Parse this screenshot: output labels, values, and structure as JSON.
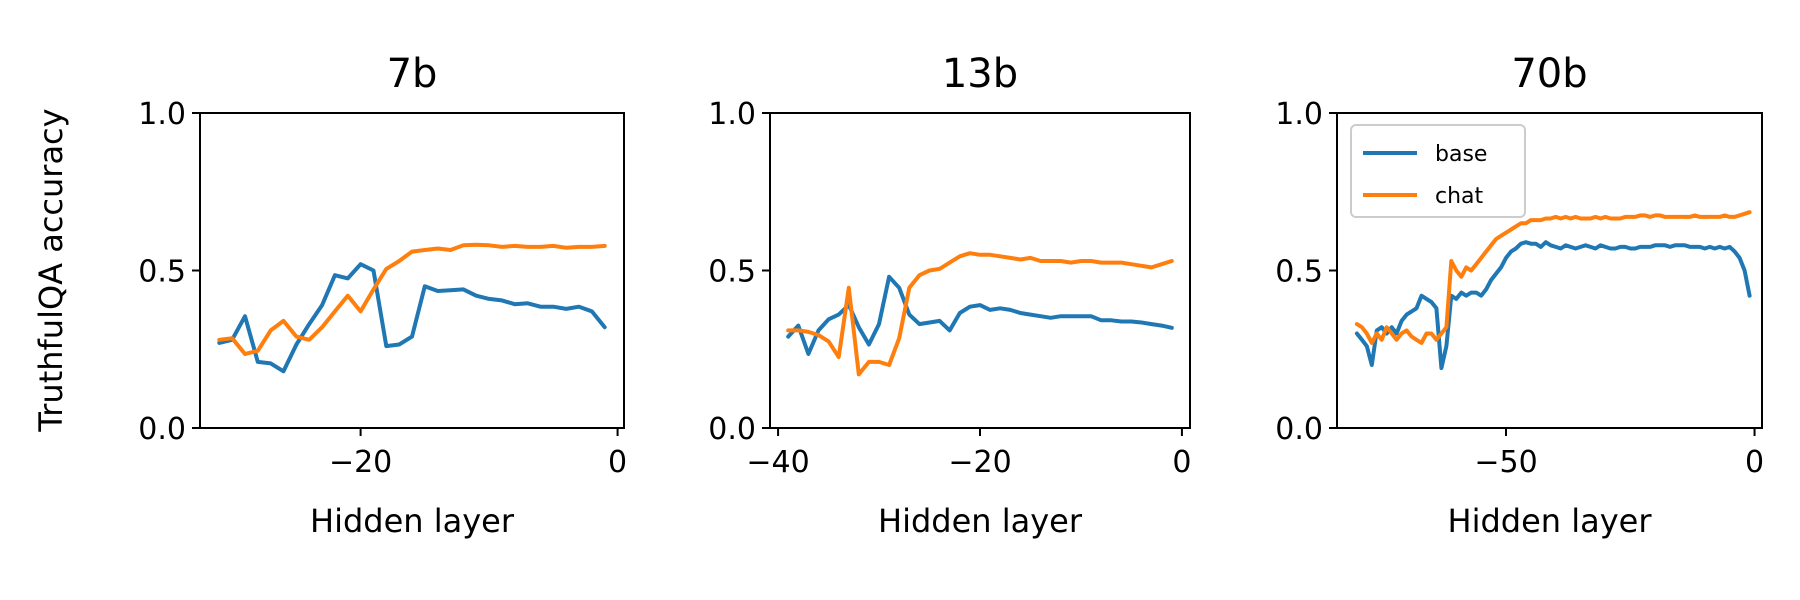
{
  "figure": {
    "ylabel": "TruthfulQA accuracy"
  },
  "colors": {
    "base": "#1f77b4",
    "chat": "#ff7f0e"
  },
  "chart_data": [
    {
      "type": "line",
      "title": "7b",
      "xlabel": "Hidden layer",
      "ylabel": "TruthfulQA accuracy",
      "xlim": [
        -32.5,
        0.5
      ],
      "ylim": [
        0,
        1
      ],
      "xticks": [
        -20,
        0
      ],
      "xtick_labels": [
        "−20",
        "0"
      ],
      "yticks": [
        0,
        0.5,
        1
      ],
      "ytick_labels": [
        "0.0",
        "0.5",
        "1.0"
      ],
      "legend": null,
      "x": [
        -31,
        -30,
        -29,
        -28,
        -27,
        -26,
        -25,
        -24,
        -23,
        -22,
        -21,
        -20,
        -19,
        -18,
        -17,
        -16,
        -15,
        -14,
        -13,
        -12,
        -11,
        -10,
        -9,
        -8,
        -7,
        -6,
        -5,
        -4,
        -3,
        -2,
        -1
      ],
      "series": [
        {
          "name": "base",
          "values": [
            0.27,
            0.28,
            0.355,
            0.21,
            0.205,
            0.18,
            0.265,
            0.33,
            0.39,
            0.485,
            0.475,
            0.52,
            0.5,
            0.26,
            0.265,
            0.29,
            0.45,
            0.435,
            0.437,
            0.44,
            0.42,
            0.41,
            0.405,
            0.393,
            0.396,
            0.385,
            0.385,
            0.378,
            0.385,
            0.37,
            0.32
          ]
        },
        {
          "name": "chat",
          "values": [
            0.28,
            0.285,
            0.235,
            0.245,
            0.31,
            0.34,
            0.29,
            0.28,
            0.32,
            0.37,
            0.42,
            0.37,
            0.44,
            0.505,
            0.53,
            0.56,
            0.565,
            0.57,
            0.565,
            0.58,
            0.582,
            0.58,
            0.575,
            0.578,
            0.575,
            0.575,
            0.578,
            0.572,
            0.575,
            0.575,
            0.578
          ]
        }
      ]
    },
    {
      "type": "line",
      "title": "13b",
      "xlabel": "Hidden layer",
      "ylabel": "",
      "xlim": [
        -40.8,
        0.8
      ],
      "ylim": [
        0,
        1
      ],
      "xticks": [
        -40,
        -20,
        0
      ],
      "xtick_labels": [
        "−40",
        "−20",
        "0"
      ],
      "yticks": [
        0,
        0.5,
        1
      ],
      "ytick_labels": [
        "0.0",
        "0.5",
        "1.0"
      ],
      "legend": null,
      "x": [
        -39,
        -38,
        -37,
        -36,
        -35,
        -34,
        -33,
        -32,
        -31,
        -30,
        -29,
        -28,
        -27,
        -26,
        -25,
        -24,
        -23,
        -22,
        -21,
        -20,
        -19,
        -18,
        -17,
        -16,
        -15,
        -14,
        -13,
        -12,
        -11,
        -10,
        -9,
        -8,
        -7,
        -6,
        -5,
        -4,
        -3,
        -2,
        -1
      ],
      "series": [
        {
          "name": "base",
          "values": [
            0.29,
            0.325,
            0.235,
            0.31,
            0.345,
            0.36,
            0.39,
            0.32,
            0.265,
            0.33,
            0.48,
            0.445,
            0.36,
            0.33,
            0.335,
            0.34,
            0.31,
            0.365,
            0.385,
            0.39,
            0.375,
            0.38,
            0.375,
            0.365,
            0.36,
            0.355,
            0.35,
            0.355,
            0.355,
            0.355,
            0.355,
            0.342,
            0.342,
            0.338,
            0.338,
            0.335,
            0.33,
            0.325,
            0.318
          ]
        },
        {
          "name": "chat",
          "values": [
            0.31,
            0.31,
            0.305,
            0.295,
            0.275,
            0.225,
            0.445,
            0.17,
            0.21,
            0.21,
            0.2,
            0.285,
            0.445,
            0.485,
            0.5,
            0.505,
            0.525,
            0.545,
            0.555,
            0.55,
            0.55,
            0.545,
            0.54,
            0.535,
            0.54,
            0.53,
            0.53,
            0.53,
            0.525,
            0.53,
            0.53,
            0.525,
            0.525,
            0.525,
            0.52,
            0.515,
            0.51,
            0.52,
            0.53
          ]
        }
      ]
    },
    {
      "type": "line",
      "title": "70b",
      "xlabel": "Hidden layer",
      "ylabel": "",
      "xlim": [
        -84,
        1.5
      ],
      "ylim": [
        0,
        1
      ],
      "xticks": [
        -50,
        0
      ],
      "xtick_labels": [
        "−50",
        "0"
      ],
      "yticks": [
        0,
        0.5,
        1
      ],
      "ytick_labels": [
        "0.0",
        "0.5",
        "1.0"
      ],
      "legend": {
        "position": "top-left",
        "entries": [
          "base",
          "chat"
        ]
      },
      "x": [
        -80,
        -79,
        -78,
        -77,
        -76,
        -75,
        -74,
        -73,
        -72,
        -71,
        -70,
        -69,
        -68,
        -67,
        -66,
        -65,
        -64,
        -63,
        -62,
        -61,
        -60,
        -59,
        -58,
        -57,
        -56,
        -55,
        -54,
        -53,
        -52,
        -51,
        -50,
        -49,
        -48,
        -47,
        -46,
        -45,
        -44,
        -43,
        -42,
        -41,
        -40,
        -39,
        -38,
        -37,
        -36,
        -35,
        -34,
        -33,
        -32,
        -31,
        -30,
        -29,
        -28,
        -27,
        -26,
        -25,
        -24,
        -23,
        -22,
        -21,
        -20,
        -19,
        -18,
        -17,
        -16,
        -15,
        -14,
        -13,
        -12,
        -11,
        -10,
        -9,
        -8,
        -7,
        -6,
        -5,
        -4,
        -3,
        -2,
        -1
      ],
      "series": [
        {
          "name": "base",
          "values": [
            0.3,
            0.28,
            0.26,
            0.2,
            0.31,
            0.32,
            0.3,
            0.32,
            0.3,
            0.34,
            0.36,
            0.37,
            0.38,
            0.42,
            0.41,
            0.4,
            0.38,
            0.19,
            0.26,
            0.42,
            0.41,
            0.43,
            0.42,
            0.43,
            0.43,
            0.42,
            0.44,
            0.47,
            0.49,
            0.51,
            0.54,
            0.56,
            0.57,
            0.585,
            0.59,
            0.585,
            0.585,
            0.575,
            0.59,
            0.58,
            0.575,
            0.57,
            0.58,
            0.575,
            0.57,
            0.575,
            0.58,
            0.575,
            0.57,
            0.58,
            0.575,
            0.57,
            0.57,
            0.575,
            0.575,
            0.57,
            0.57,
            0.575,
            0.575,
            0.575,
            0.58,
            0.58,
            0.58,
            0.575,
            0.58,
            0.58,
            0.58,
            0.575,
            0.575,
            0.575,
            0.57,
            0.575,
            0.57,
            0.575,
            0.57,
            0.575,
            0.56,
            0.54,
            0.5,
            0.42
          ]
        },
        {
          "name": "chat",
          "values": [
            0.33,
            0.32,
            0.3,
            0.27,
            0.3,
            0.28,
            0.32,
            0.3,
            0.28,
            0.3,
            0.31,
            0.29,
            0.28,
            0.27,
            0.3,
            0.3,
            0.28,
            0.3,
            0.32,
            0.53,
            0.5,
            0.48,
            0.51,
            0.5,
            0.52,
            0.54,
            0.56,
            0.58,
            0.6,
            0.61,
            0.62,
            0.63,
            0.64,
            0.65,
            0.65,
            0.66,
            0.66,
            0.66,
            0.665,
            0.665,
            0.67,
            0.665,
            0.67,
            0.665,
            0.67,
            0.665,
            0.665,
            0.665,
            0.67,
            0.665,
            0.67,
            0.665,
            0.665,
            0.665,
            0.67,
            0.67,
            0.67,
            0.675,
            0.675,
            0.67,
            0.675,
            0.675,
            0.67,
            0.67,
            0.67,
            0.67,
            0.67,
            0.67,
            0.675,
            0.67,
            0.67,
            0.67,
            0.67,
            0.67,
            0.675,
            0.67,
            0.67,
            0.675,
            0.68,
            0.685
          ]
        }
      ]
    }
  ]
}
